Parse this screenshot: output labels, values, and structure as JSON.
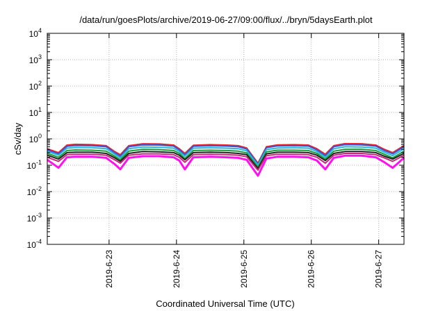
{
  "chart_data": {
    "type": "line",
    "title": "/data/run/goesPlots/archive/2019-06-27/09:00/flux/../bryn/5daysEarth.plot",
    "xlabel": "Coordinated Universal Time (UTC)",
    "ylabel": "cSv/day",
    "yscale": "log",
    "ylim": [
      0.0001,
      10000
    ],
    "xlim": [
      "2019-06-22T02:00",
      "2019-06-27T09:00"
    ],
    "grid": true,
    "legend": "none",
    "x_ticks": [
      "2019-6-23",
      "2019-6-24",
      "2019-6-25",
      "2019-6-26",
      "2019-6-27"
    ],
    "y_ticks": [
      {
        "base": "10",
        "exp": "-4"
      },
      {
        "base": "10",
        "exp": "-3"
      },
      {
        "base": "10",
        "exp": "-2"
      },
      {
        "base": "10",
        "exp": "-1"
      },
      {
        "base": "10",
        "exp": "0"
      },
      {
        "base": "10",
        "exp": "1"
      },
      {
        "base": "10",
        "exp": "2"
      },
      {
        "base": "10",
        "exp": "3"
      },
      {
        "base": "10",
        "exp": "4"
      }
    ],
    "x": [
      "2019-06-22T02:00",
      "2019-06-22T06:00",
      "2019-06-22T09:00",
      "2019-06-22T12:00",
      "2019-06-22T18:00",
      "2019-06-22T23:00",
      "2019-06-23T02:00",
      "2019-06-23T04:00",
      "2019-06-23T07:00",
      "2019-06-23T12:00",
      "2019-06-23T18:00",
      "2019-06-23T23:00",
      "2019-06-24T01:00",
      "2019-06-24T03:00",
      "2019-06-24T06:00",
      "2019-06-24T12:00",
      "2019-06-24T18:00",
      "2019-06-24T22:00",
      "2019-06-25T01:00",
      "2019-06-25T05:00",
      "2019-06-25T08:00",
      "2019-06-25T12:00",
      "2019-06-25T18:00",
      "2019-06-25T23:00",
      "2019-06-26T02:00",
      "2019-06-26T05:00",
      "2019-06-26T08:00",
      "2019-06-26T12:00",
      "2019-06-26T18:00",
      "2019-06-26T23:00",
      "2019-06-27T02:00",
      "2019-06-27T05:00",
      "2019-06-27T09:00"
    ],
    "series": [
      {
        "color": "#e8212a",
        "values": [
          0.42,
          0.3,
          0.58,
          0.62,
          0.6,
          0.55,
          0.33,
          0.25,
          0.55,
          0.65,
          0.64,
          0.58,
          0.42,
          0.28,
          0.57,
          0.6,
          0.58,
          0.55,
          0.45,
          0.12,
          0.5,
          0.59,
          0.6,
          0.58,
          0.42,
          0.26,
          0.55,
          0.66,
          0.65,
          0.58,
          0.4,
          0.3,
          0.55
        ]
      },
      {
        "color": "#3a56d6",
        "values": [
          0.38,
          0.27,
          0.52,
          0.56,
          0.55,
          0.5,
          0.3,
          0.22,
          0.5,
          0.59,
          0.58,
          0.53,
          0.38,
          0.25,
          0.52,
          0.55,
          0.53,
          0.5,
          0.41,
          0.11,
          0.46,
          0.54,
          0.55,
          0.53,
          0.38,
          0.23,
          0.5,
          0.6,
          0.59,
          0.53,
          0.36,
          0.27,
          0.5
        ]
      },
      {
        "color": "#28b8d8",
        "values": [
          0.33,
          0.24,
          0.44,
          0.47,
          0.46,
          0.42,
          0.26,
          0.19,
          0.42,
          0.49,
          0.48,
          0.44,
          0.33,
          0.22,
          0.44,
          0.46,
          0.44,
          0.42,
          0.35,
          0.1,
          0.39,
          0.45,
          0.46,
          0.44,
          0.33,
          0.2,
          0.42,
          0.5,
          0.49,
          0.44,
          0.31,
          0.23,
          0.42
        ]
      },
      {
        "color": "#1a9c3a",
        "values": [
          0.28,
          0.2,
          0.36,
          0.38,
          0.37,
          0.34,
          0.22,
          0.16,
          0.34,
          0.4,
          0.39,
          0.36,
          0.28,
          0.18,
          0.36,
          0.37,
          0.36,
          0.34,
          0.29,
          0.085,
          0.32,
          0.37,
          0.37,
          0.36,
          0.28,
          0.17,
          0.34,
          0.4,
          0.4,
          0.36,
          0.26,
          0.19,
          0.34
        ]
      },
      {
        "color": "#222222",
        "values": [
          0.24,
          0.17,
          0.3,
          0.31,
          0.31,
          0.28,
          0.19,
          0.14,
          0.28,
          0.33,
          0.32,
          0.3,
          0.24,
          0.16,
          0.3,
          0.31,
          0.3,
          0.28,
          0.25,
          0.075,
          0.27,
          0.31,
          0.31,
          0.3,
          0.24,
          0.15,
          0.28,
          0.33,
          0.33,
          0.3,
          0.22,
          0.17,
          0.28
        ]
      },
      {
        "color": "#c8287a",
        "values": [
          0.2,
          0.14,
          0.25,
          0.26,
          0.26,
          0.24,
          0.16,
          0.12,
          0.24,
          0.27,
          0.27,
          0.25,
          0.2,
          0.13,
          0.25,
          0.26,
          0.25,
          0.24,
          0.21,
          0.065,
          0.23,
          0.26,
          0.26,
          0.25,
          0.2,
          0.12,
          0.24,
          0.28,
          0.28,
          0.25,
          0.19,
          0.14,
          0.24
        ]
      },
      {
        "color": "#ff10ee",
        "values": [
          0.16,
          0.08,
          0.2,
          0.21,
          0.21,
          0.19,
          0.11,
          0.07,
          0.19,
          0.22,
          0.22,
          0.2,
          0.15,
          0.07,
          0.2,
          0.21,
          0.2,
          0.19,
          0.16,
          0.04,
          0.18,
          0.21,
          0.21,
          0.2,
          0.15,
          0.07,
          0.19,
          0.23,
          0.23,
          0.2,
          0.13,
          0.08,
          0.19
        ]
      }
    ]
  }
}
